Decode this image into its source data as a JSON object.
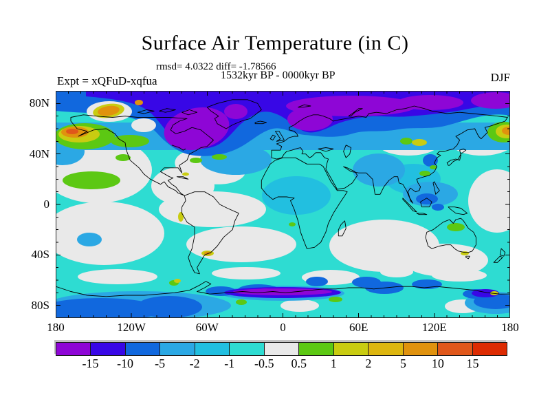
{
  "header": {
    "title": "Surface Air Temperature (in C)",
    "stats": "rmsd= 4.0322 diff= -1.78566",
    "period": "1532kyr BP - 0000kyr BP",
    "experiment": "Expt = xQFuD-xqfua",
    "season": "DJF"
  },
  "axes": {
    "lat_labels": [
      {
        "text": "80N",
        "lat": 80
      },
      {
        "text": "40N",
        "lat": 40
      },
      {
        "text": "0",
        "lat": 0
      },
      {
        "text": "40S",
        "lat": -40
      },
      {
        "text": "80S",
        "lat": -80
      }
    ],
    "lon_labels": [
      {
        "text": "180",
        "lon": -180
      },
      {
        "text": "120W",
        "lon": -120
      },
      {
        "text": "60W",
        "lon": -60
      },
      {
        "text": "0",
        "lon": 0
      },
      {
        "text": "60E",
        "lon": 60
      },
      {
        "text": "120E",
        "lon": 120
      },
      {
        "text": "180",
        "lon": 180
      }
    ]
  },
  "chart_data": {
    "type": "heatmap",
    "title": "Surface Air Temperature (in C)",
    "subtitle_stats": "rmsd= 4.0322 diff= -1.78566",
    "subtitle_comparison": "1532kyr BP - 0000kyr BP",
    "experiment": "Expt = xQFuD-xqfua",
    "season": "DJF",
    "rmsd": 4.0322,
    "diff": -1.78566,
    "projection": "equirectangular world map, 90N to 90S, 180W to 180E",
    "x_axis": {
      "labeled_ticks": [
        "180",
        "120W",
        "60W",
        "0",
        "60E",
        "120E",
        "180"
      ],
      "minor_tick_interval_deg": 10
    },
    "y_axis": {
      "labeled_ticks": [
        "80N",
        "40N",
        "0",
        "40S",
        "80S"
      ],
      "minor_tick_interval_deg": 10
    },
    "grid": false,
    "legend_position": "bottom horizontal colorbar",
    "colorbar": {
      "boundary_labels": [
        "-15",
        "-10",
        "-5",
        "-2",
        "-1",
        "-0.5",
        "0.5",
        "1",
        "2",
        "5",
        "10",
        "15"
      ],
      "segment_colors": [
        "#8E06D6",
        "#3807E6",
        "#1168DE",
        "#2BA8E4",
        "#22BFE0",
        "#2EDCD2",
        "#E9E9E9",
        "#5CC813",
        "#C9CC11",
        "#DDB60F",
        "#E0920E",
        "#E0571A",
        "#DD2B02"
      ]
    },
    "pattern_summary": "Temperature anomaly (1532kyr BP minus 0000kyr BP, DJF): strong cooling of -5 to -15 C (blue, violet, purple) across the Arctic, northern Canada, Siberia and Scandinavia and along the Antarctic coast; weak cooling of -0.5 to -2 C (cyan) over most tropics and mid-latitude continents; near-zero change (white) over the subtropical oceans; localized warming of +1 to +10 C (green, yellow, orange) near the Bering Strait, northwest Canada, the central-Asian interior, the far northwest Pacific and parts of Australia and coastal South America."
  }
}
